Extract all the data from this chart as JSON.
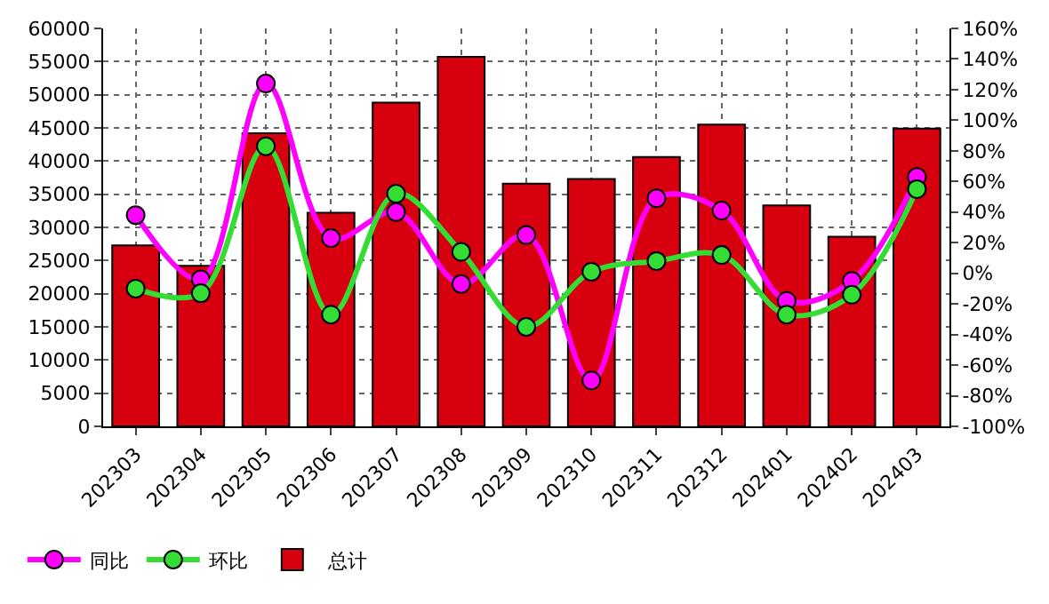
{
  "chart_data": {
    "type": "bar",
    "categories": [
      "202303",
      "202304",
      "202305",
      "202306",
      "202307",
      "202308",
      "202309",
      "202310",
      "202311",
      "202312",
      "202401",
      "202402",
      "202403"
    ],
    "series": [
      {
        "name": "同比",
        "type": "line",
        "axis": "y2",
        "color": "#ff00ff",
        "values": [
          38,
          -4,
          124,
          23,
          40,
          -7,
          25,
          -70,
          49,
          41,
          -18,
          -5,
          63
        ]
      },
      {
        "name": "环比",
        "type": "line",
        "axis": "y2",
        "color": "#33dd33",
        "values": [
          -10,
          -13,
          83,
          -27,
          52,
          14,
          -35,
          1,
          8,
          12,
          -27,
          -14,
          55
        ]
      },
      {
        "name": "总计",
        "color": "#d7000f",
        "values": [
          27300,
          24200,
          44200,
          32200,
          48800,
          55700,
          36600,
          37300,
          40600,
          45500,
          33300,
          28600,
          44900
        ]
      }
    ],
    "ylim": [
      0,
      60000
    ],
    "yticks": [
      0,
      5000,
      10000,
      15000,
      20000,
      25000,
      30000,
      35000,
      40000,
      45000,
      50000,
      55000,
      60000
    ],
    "y2lim": [
      -100,
      160
    ],
    "y2ticks": [
      {
        "value": -100,
        "label": "-100%"
      },
      {
        "value": -80,
        "label": "-80%"
      },
      {
        "value": -60,
        "label": "-60%"
      },
      {
        "value": -40,
        "label": "-40%"
      },
      {
        "value": -20,
        "label": "-20%"
      },
      {
        "value": 0,
        "label": "0%"
      },
      {
        "value": 20,
        "label": "20%"
      },
      {
        "value": 40,
        "label": "40%"
      },
      {
        "value": 60,
        "label": "60%"
      },
      {
        "value": 80,
        "label": "80%"
      },
      {
        "value": 100,
        "label": "100%"
      },
      {
        "value": 120,
        "label": "120%"
      },
      {
        "value": 140,
        "label": "140%"
      },
      {
        "value": 160,
        "label": "160%"
      }
    ],
    "grid": true,
    "legend": "bottom left",
    "marker": "circle"
  }
}
